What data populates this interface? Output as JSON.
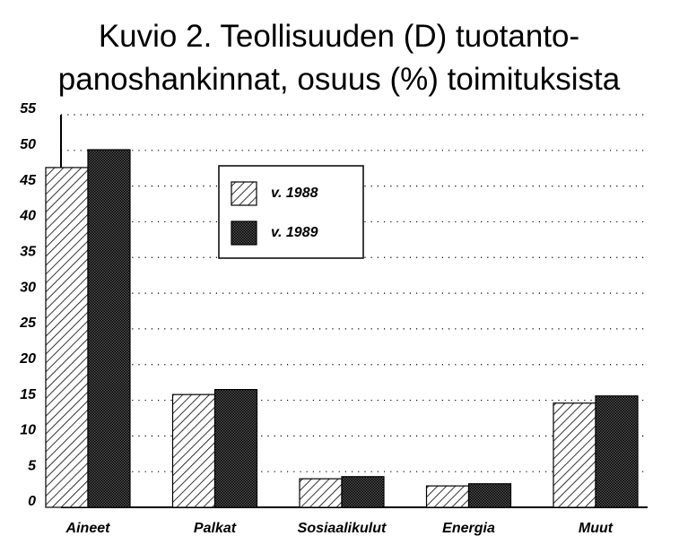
{
  "chart_data": {
    "type": "bar",
    "title": [
      "Kuvio 2. Teollisuuden (D) tuotanto-",
      "panoshankinnat, osuus (%) toimituksista"
    ],
    "categories": [
      "Aineet",
      "Palkat",
      "Sosiaalikulut",
      "Energia",
      "Muut"
    ],
    "series": [
      {
        "name": "v. 1988",
        "color": "#000000",
        "pattern": "diagonal",
        "values": [
          47.6,
          15.8,
          4.0,
          3.0,
          14.6
        ]
      },
      {
        "name": "v. 1989",
        "color": "#000000",
        "pattern": "crosshatch",
        "values": [
          50.1,
          16.5,
          4.3,
          3.3,
          15.6
        ]
      }
    ],
    "ylim": [
      0,
      55
    ],
    "yticks": [
      0,
      5,
      10,
      15,
      20,
      25,
      30,
      35,
      40,
      45,
      50,
      55
    ],
    "grid": true
  }
}
